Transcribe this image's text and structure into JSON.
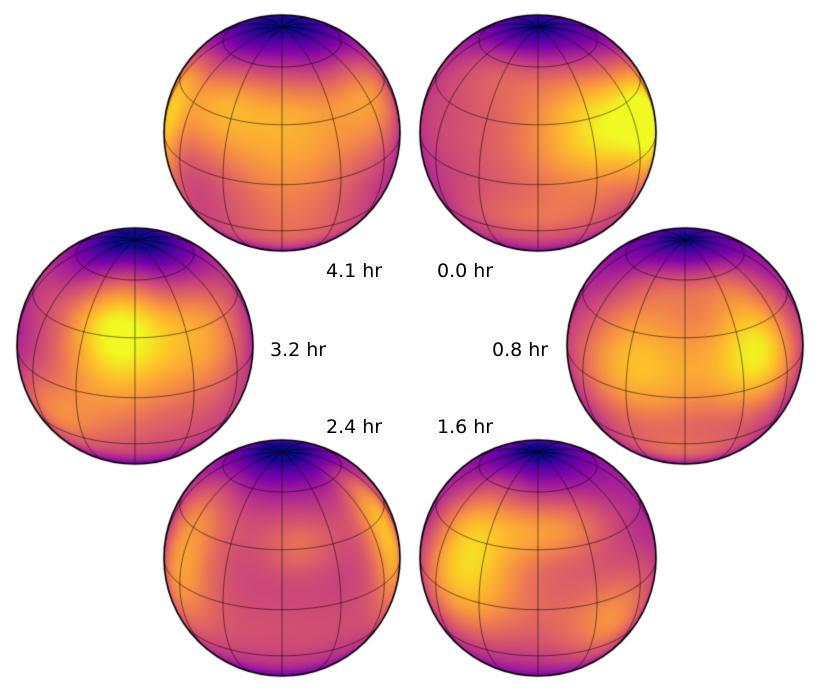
{
  "figure": {
    "type": "surface-map-rotation-sequence",
    "colormap": "plasma",
    "colors": {
      "dark": "#5b069b",
      "mid": "#d14e73",
      "bright": "#fae13a",
      "outline": "#000000"
    },
    "panels": [
      {
        "label": "0.0 hr",
        "spots": [
          {
            "lon": 40,
            "lat": 25,
            "w": 30,
            "h": 22,
            "s": 0.9
          },
          {
            "lon": 78,
            "lat": 8,
            "w": 18,
            "h": 22,
            "s": 0.95
          },
          {
            "lon": -30,
            "lat": 55,
            "w": 45,
            "h": 12,
            "s": 0.5
          },
          {
            "lon": 0,
            "lat": -20,
            "w": 35,
            "h": 12,
            "s": 0.4
          }
        ]
      },
      {
        "label": "0.8 hr",
        "spots": [
          {
            "lon": 40,
            "lat": 20,
            "w": 20,
            "h": 22,
            "s": 0.95
          },
          {
            "lon": -25,
            "lat": 18,
            "w": 25,
            "h": 25,
            "s": 0.7
          },
          {
            "lon": 0,
            "lat": -35,
            "w": 30,
            "h": 12,
            "s": 0.4
          },
          {
            "lon": 10,
            "lat": 55,
            "w": 40,
            "h": 10,
            "s": 0.4
          }
        ]
      },
      {
        "label": "1.6 hr",
        "spots": [
          {
            "lon": -40,
            "lat": 22,
            "w": 22,
            "h": 25,
            "s": 0.95
          },
          {
            "lon": 10,
            "lat": 40,
            "w": 25,
            "h": 12,
            "s": 0.55
          },
          {
            "lon": 40,
            "lat": -15,
            "w": 20,
            "h": 18,
            "s": 0.5
          }
        ]
      },
      {
        "label": "2.4 hr",
        "spots": [
          {
            "lon": 72,
            "lat": 20,
            "w": 15,
            "h": 25,
            "s": 0.95
          },
          {
            "lon": -60,
            "lat": 15,
            "w": 18,
            "h": 25,
            "s": 0.75
          },
          {
            "lon": 10,
            "lat": 30,
            "w": 15,
            "h": 10,
            "s": 0.3
          }
        ]
      },
      {
        "label": "3.2 hr",
        "spots": [
          {
            "lon": -10,
            "lat": 28,
            "w": 22,
            "h": 25,
            "s": 1.0
          },
          {
            "lon": 40,
            "lat": 20,
            "w": 22,
            "h": 20,
            "s": 0.6
          },
          {
            "lon": -45,
            "lat": -15,
            "w": 20,
            "h": 15,
            "s": 0.45
          }
        ]
      },
      {
        "label": "4.1 hr",
        "spots": [
          {
            "lon": -80,
            "lat": 10,
            "w": 15,
            "h": 25,
            "s": 0.95
          },
          {
            "lon": 5,
            "lat": 15,
            "w": 25,
            "h": 40,
            "s": 0.55
          },
          {
            "lon": 60,
            "lat": 30,
            "w": 20,
            "h": 20,
            "s": 0.5
          },
          {
            "lon": -40,
            "lat": 35,
            "w": 20,
            "h": 20,
            "s": 0.5
          }
        ]
      }
    ]
  }
}
